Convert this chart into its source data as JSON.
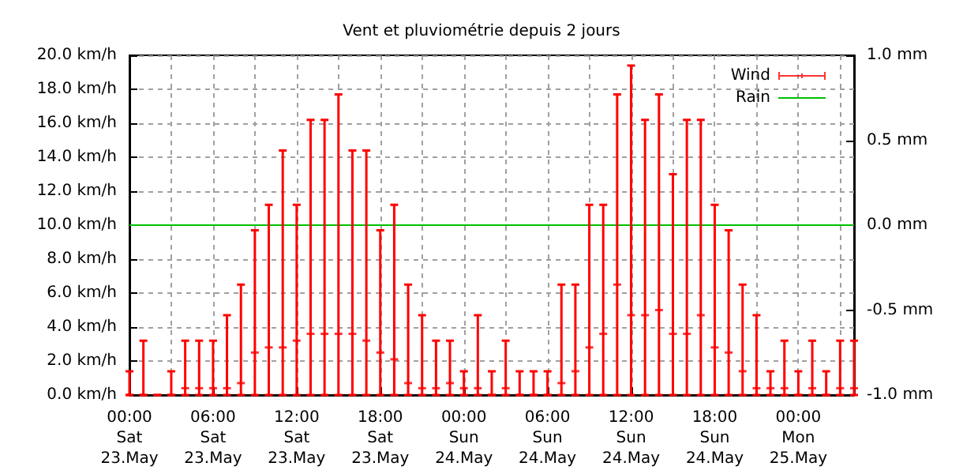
{
  "chart_data": {
    "type": "scatter",
    "title": "Vent et pluviométrie depuis 2 jours",
    "categories": [
      "00:00\nSat\n23.May",
      null,
      null,
      null,
      null,
      null,
      "06:00\nSat\n23.May",
      null,
      null,
      null,
      null,
      null,
      "12:00\nSat\n23.May",
      null,
      null,
      null,
      null,
      null,
      "18:00\nSat\n23.May",
      null,
      null,
      null,
      null,
      null,
      "00:00\nSun\n24.May",
      null,
      null,
      null,
      null,
      null,
      "06:00\nSun\n24.May",
      null,
      null,
      null,
      null,
      null,
      "12:00\nSun\n24.May",
      null,
      null,
      null,
      null,
      null,
      "18:00\nSun\n24.May",
      null,
      null,
      null,
      null,
      null,
      "00:00\nMon\n25.May",
      null,
      null,
      null,
      null
    ],
    "series": [
      {
        "name": "Wind",
        "color": "#ff0000",
        "values": [
          0,
          0,
          0,
          0,
          0.4,
          0.4,
          0.4,
          0.4,
          0.7,
          2.5,
          2.8,
          2.8,
          3.2,
          3.6,
          3.6,
          3.6,
          3.6,
          3.2,
          2.5,
          2.1,
          0.7,
          0.4,
          0.4,
          0.7,
          0.4,
          0.4,
          0,
          0.4,
          0,
          0,
          0,
          0.7,
          1.4,
          2.8,
          3.6,
          6.5,
          4.7,
          4.7,
          5.0,
          3.6,
          3.6,
          4.7,
          2.8,
          2.5,
          1.4,
          0.4,
          0.4,
          0.4,
          0,
          0.4,
          0,
          0.4,
          0.4
        ],
        "errors": [
          [
            0,
            1.4
          ],
          [
            0,
            3.2
          ],
          [
            0,
            0
          ],
          [
            0,
            1.4
          ],
          [
            0,
            3.2
          ],
          [
            0,
            3.2
          ],
          [
            0,
            3.2
          ],
          [
            0,
            4.7
          ],
          [
            0,
            6.5
          ],
          [
            0,
            9.7
          ],
          [
            0,
            11.2
          ],
          [
            0,
            14.4
          ],
          [
            0,
            11.2
          ],
          [
            0,
            16.2
          ],
          [
            0,
            16.2
          ],
          [
            0,
            17.7
          ],
          [
            0,
            14.4
          ],
          [
            0,
            14.4
          ],
          [
            0,
            9.7
          ],
          [
            0,
            11.2
          ],
          [
            0,
            6.5
          ],
          [
            0,
            4.7
          ],
          [
            0,
            3.2
          ],
          [
            0,
            3.2
          ],
          [
            0,
            1.4
          ],
          [
            0,
            4.7
          ],
          [
            0,
            1.4
          ],
          [
            0,
            3.2
          ],
          [
            0,
            1.4
          ],
          [
            0,
            1.4
          ],
          [
            0,
            1.4
          ],
          [
            0,
            6.5
          ],
          [
            0,
            6.5
          ],
          [
            0,
            11.2
          ],
          [
            0,
            11.2
          ],
          [
            0,
            17.7
          ],
          [
            0,
            19.4
          ],
          [
            0,
            16.2
          ],
          [
            0,
            17.7
          ],
          [
            0,
            13.0
          ],
          [
            0,
            16.2
          ],
          [
            0,
            16.2
          ],
          [
            0,
            11.2
          ],
          [
            0,
            9.7
          ],
          [
            0,
            6.5
          ],
          [
            0,
            4.7
          ],
          [
            0,
            1.4
          ],
          [
            0,
            3.2
          ],
          [
            0,
            1.4
          ],
          [
            0,
            3.2
          ],
          [
            0,
            1.4
          ],
          [
            0,
            3.2
          ],
          [
            0,
            3.2
          ]
        ]
      },
      {
        "name": "Rain",
        "type": "line",
        "axis": "y2",
        "color": "#00c000",
        "values": [
          0,
          0,
          0,
          0,
          0,
          0,
          0,
          0,
          0,
          0,
          0,
          0,
          0,
          0,
          0,
          0,
          0,
          0,
          0,
          0,
          0,
          0,
          0,
          0,
          0,
          0,
          0,
          0,
          0,
          0,
          0,
          0,
          0,
          0,
          0,
          0,
          0,
          0,
          0,
          0,
          0,
          0,
          0,
          0,
          0,
          0,
          0,
          0,
          0,
          0,
          0,
          0,
          0
        ]
      }
    ],
    "ylim": [
      0,
      20
    ],
    "yticks": [
      {
        "value": 0,
        "label": "0.0 km/h"
      },
      {
        "value": 2,
        "label": "2.0 km/h"
      },
      {
        "value": 4,
        "label": "4.0 km/h"
      },
      {
        "value": 6,
        "label": "6.0 km/h"
      },
      {
        "value": 8,
        "label": "8.0 km/h"
      },
      {
        "value": 10,
        "label": "10.0 km/h"
      },
      {
        "value": 12,
        "label": "12.0 km/h"
      },
      {
        "value": 14,
        "label": "14.0 km/h"
      },
      {
        "value": 16,
        "label": "16.0 km/h"
      },
      {
        "value": 18,
        "label": "18.0 km/h"
      },
      {
        "value": 20,
        "label": "20.0 km/h"
      }
    ],
    "y2lim": [
      -1,
      1
    ],
    "y2ticks": [
      {
        "value": -1,
        "label": "-1.0 mm"
      },
      {
        "value": -0.5,
        "label": "-0.5 mm"
      },
      {
        "value": 0,
        "label": "0.0 mm"
      },
      {
        "value": 0.5,
        "label": "0.5 mm"
      },
      {
        "value": 1,
        "label": "1.0 mm"
      }
    ],
    "grid": true,
    "legend": "top right"
  }
}
